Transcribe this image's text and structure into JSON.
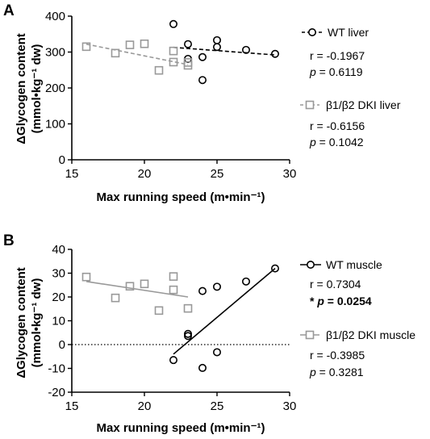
{
  "chart_data": [
    {
      "type": "scatter",
      "panel": "A",
      "xlabel": "Max running speed (m•min⁻¹)",
      "ylabel_line1": "ΔGlycogen content",
      "ylabel_line2": "(mmol•kg⁻¹ dw)",
      "xlim": [
        15,
        30
      ],
      "ylim": [
        0,
        400
      ],
      "xticks": [
        15,
        20,
        25,
        30
      ],
      "yticks": [
        0,
        100,
        200,
        300,
        400
      ],
      "zero_line": false,
      "series": [
        {
          "name": "WT liver",
          "marker": "circle",
          "color": "#000000",
          "line_style": "dashed",
          "points": [
            [
              22,
              378
            ],
            [
              23,
              322
            ],
            [
              23,
              281
            ],
            [
              24,
              286
            ],
            [
              24,
              222
            ],
            [
              25,
              333
            ],
            [
              25,
              314
            ],
            [
              27,
              306
            ],
            [
              29,
              295
            ]
          ],
          "fit": [
            [
              22,
              313
            ],
            [
              29,
              292
            ]
          ],
          "stats": {
            "r": "r = -0.1967",
            "p_label": "p",
            "p_value": " = 0.6119",
            "significant": false,
            "star": ""
          }
        },
        {
          "name": "β1/β2 DKI liver",
          "marker": "square",
          "color": "#999999",
          "line_style": "dashed",
          "points": [
            [
              16,
              315
            ],
            [
              18,
              297
            ],
            [
              19,
              320
            ],
            [
              20,
              323
            ],
            [
              21,
              249
            ],
            [
              22,
              303
            ],
            [
              22,
              272
            ],
            [
              23,
              271
            ],
            [
              23,
              263
            ]
          ],
          "fit": [
            [
              16,
              322
            ],
            [
              23,
              265
            ]
          ],
          "stats": {
            "r": "r = -0.6156",
            "p_label": "p",
            "p_value": " = 0.1042",
            "significant": false,
            "star": ""
          }
        }
      ]
    },
    {
      "type": "scatter",
      "panel": "B",
      "xlabel": "Max running speed (m•min⁻¹)",
      "ylabel_line1": "ΔGlycogen content",
      "ylabel_line2": "(mmol•kg⁻¹ dw)",
      "xlim": [
        15,
        30
      ],
      "ylim": [
        -20,
        40
      ],
      "xticks": [
        15,
        20,
        25,
        30
      ],
      "yticks": [
        -20,
        -10,
        0,
        10,
        20,
        30,
        40
      ],
      "zero_line": true,
      "series": [
        {
          "name": "WT muscle",
          "marker": "circle",
          "color": "#000000",
          "line_style": "solid",
          "points": [
            [
              22,
              -6.5
            ],
            [
              23,
              4.5
            ],
            [
              23,
              3.6
            ],
            [
              24,
              22.5
            ],
            [
              24,
              -9.8
            ],
            [
              25,
              24.3
            ],
            [
              25,
              -3.2
            ],
            [
              27,
              26.5
            ],
            [
              29,
              32
            ]
          ],
          "fit": [
            [
              22,
              -4
            ],
            [
              29,
              32
            ]
          ],
          "stats": {
            "r": "r = 0.7304",
            "p_label": "p",
            "p_value": " = 0.0254",
            "significant": true,
            "star": "* "
          }
        },
        {
          "name": "β1/β2 DKI muscle",
          "marker": "square",
          "color": "#999999",
          "line_style": "solid",
          "points": [
            [
              16,
              28.4
            ],
            [
              18,
              19.6
            ],
            [
              19,
              24.5
            ],
            [
              20,
              25.5
            ],
            [
              21,
              14.3
            ],
            [
              22,
              28.6
            ],
            [
              22,
              23
            ],
            [
              23,
              15.2
            ]
          ],
          "fit": [
            [
              16,
              26.5
            ],
            [
              23,
              20
            ]
          ],
          "stats": {
            "r": "r = -0.3985",
            "p_label": "p",
            "p_value": " = 0.3281",
            "significant": false,
            "star": ""
          }
        }
      ]
    }
  ]
}
